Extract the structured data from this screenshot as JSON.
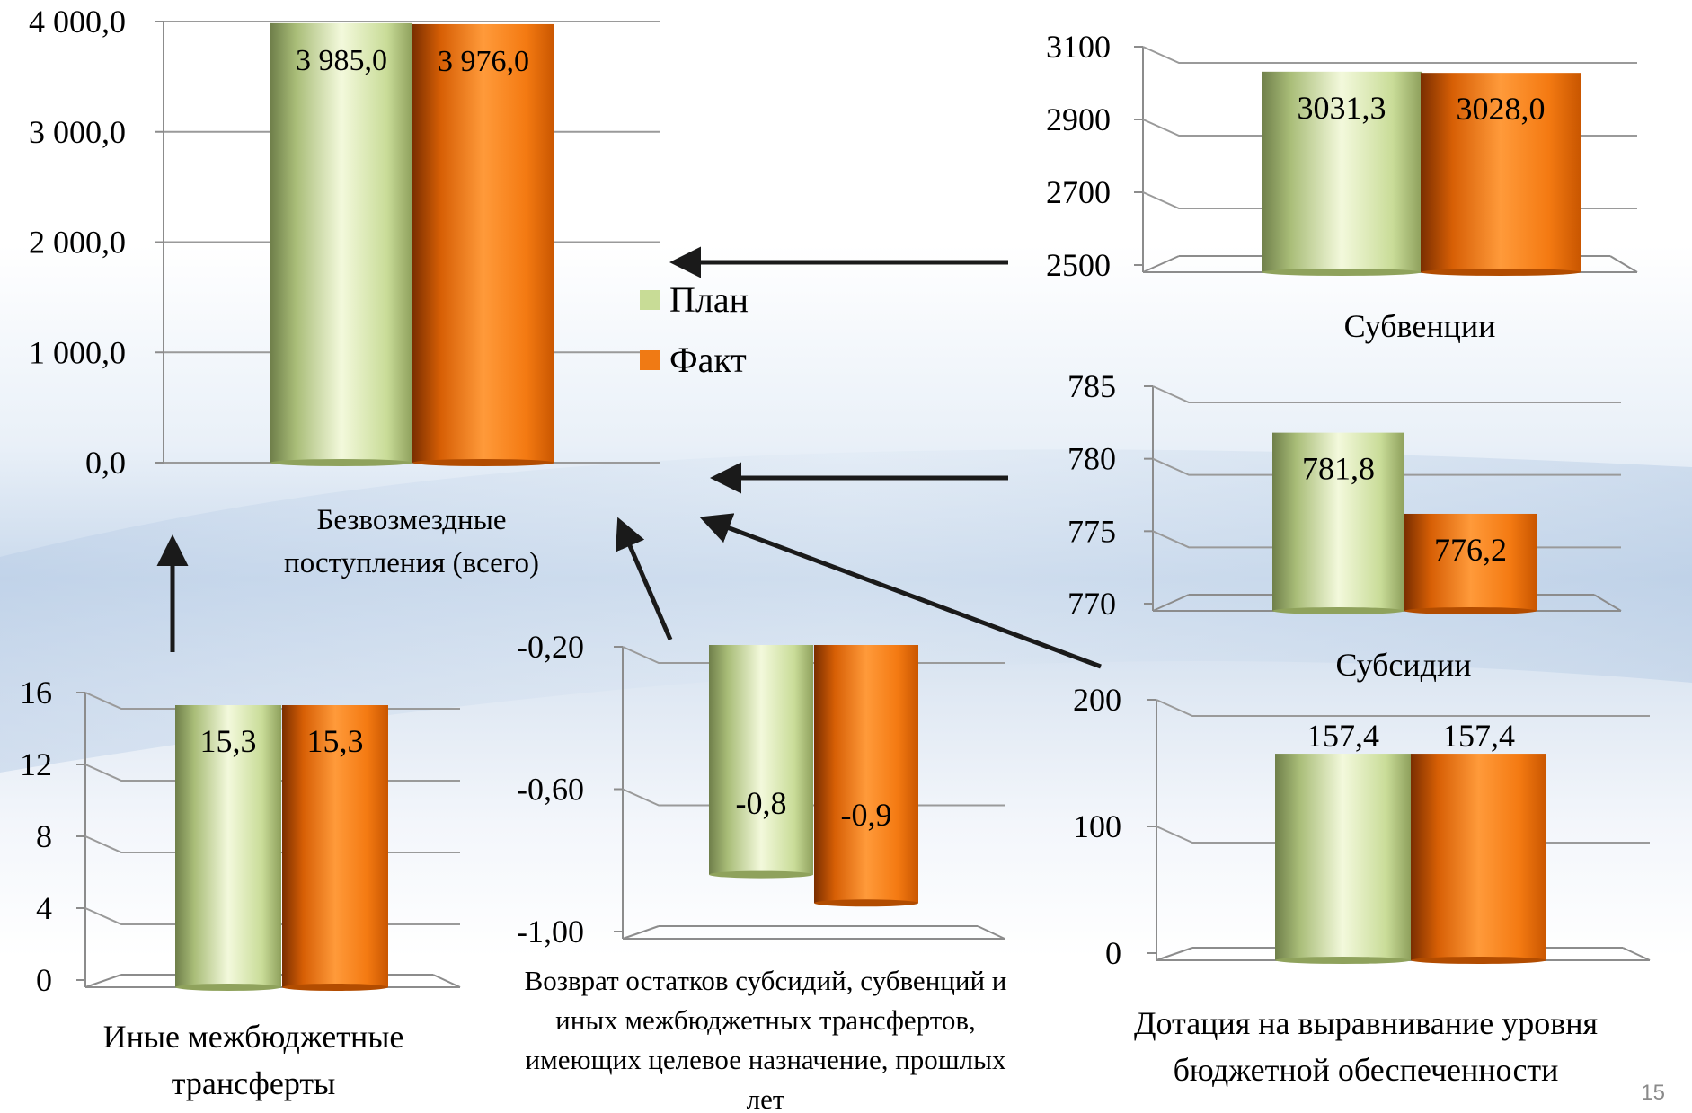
{
  "colors": {
    "plan": "#c8dc96",
    "fact": "#f07a14"
  },
  "legend": {
    "plan_label": "План",
    "fact_label": "Факт"
  },
  "page_number": "15",
  "chart_data": [
    {
      "id": "total",
      "type": "bar",
      "title": "Безвозмездные поступления (всего)",
      "title_lines": [
        "Безвозмездные",
        "поступления (всего)"
      ],
      "series": [
        {
          "name": "План",
          "values": [
            3985.0
          ]
        },
        {
          "name": "Факт",
          "values": [
            3976.0
          ]
        }
      ],
      "value_labels": [
        "3 985,0",
        "3 976,0"
      ],
      "y_ticks": [
        "4 000,0",
        "3 000,0",
        "2 000,0",
        "1 000,0",
        "0,0"
      ],
      "ylim": [
        0,
        4000
      ],
      "legend": "right"
    },
    {
      "id": "subventions",
      "type": "bar",
      "title": "Субвенции",
      "title_lines": [
        "Субвенции"
      ],
      "series": [
        {
          "name": "План",
          "values": [
            3031.3
          ]
        },
        {
          "name": "Факт",
          "values": [
            3028.0
          ]
        }
      ],
      "value_labels": [
        "3031,3",
        "3028,0"
      ],
      "y_ticks": [
        "3100",
        "2900",
        "2700",
        "2500"
      ],
      "ylim": [
        2500,
        3100
      ]
    },
    {
      "id": "subsidies",
      "type": "bar",
      "title": "Субсидии",
      "title_lines": [
        "Субсидии"
      ],
      "series": [
        {
          "name": "План",
          "values": [
            781.8
          ]
        },
        {
          "name": "Факт",
          "values": [
            776.2
          ]
        }
      ],
      "value_labels": [
        "781,8",
        "776,2"
      ],
      "y_ticks": [
        "785",
        "780",
        "775",
        "770"
      ],
      "ylim": [
        770,
        785
      ]
    },
    {
      "id": "dotation",
      "type": "bar",
      "title": "Дотация на выравнивание уровня бюджетной обеспеченности",
      "title_lines": [
        "Дотация на выравнивание уровня",
        "бюджетной обеспеченности"
      ],
      "series": [
        {
          "name": "План",
          "values": [
            157.4
          ]
        },
        {
          "name": "Факт",
          "values": [
            157.4
          ]
        }
      ],
      "value_labels": [
        "157,4",
        "157,4"
      ],
      "y_ticks": [
        "200",
        "100",
        "0"
      ],
      "ylim": [
        0,
        200
      ]
    },
    {
      "id": "other",
      "type": "bar",
      "title": "Иные межбюджетные трансферты",
      "title_lines": [
        "Иные межбюджетные",
        "трансферты"
      ],
      "series": [
        {
          "name": "План",
          "values": [
            15.3
          ]
        },
        {
          "name": "Факт",
          "values": [
            15.3
          ]
        }
      ],
      "value_labels": [
        "15,3",
        "15,3"
      ],
      "y_ticks": [
        "16",
        "12",
        "8",
        "4",
        "0"
      ],
      "ylim": [
        0,
        16
      ]
    },
    {
      "id": "returns",
      "type": "bar",
      "title": "Возврат остатков субсидий, субвенций и иных межбюджетных трансфертов, имеющих целевое назначение, прошлых лет",
      "title_lines": [
        "Возврат остатков субсидий, субвенций и",
        "иных межбюджетных трансфертов,",
        "имеющих целевое назначение, прошлых",
        "лет"
      ],
      "series": [
        {
          "name": "План",
          "values": [
            -0.8
          ]
        },
        {
          "name": "Факт",
          "values": [
            -0.9
          ]
        }
      ],
      "value_labels": [
        "-0,8",
        "-0,9"
      ],
      "y_ticks": [
        "-0,20",
        "-0,60",
        "-1,00"
      ],
      "ylim": [
        -1.0,
        0
      ]
    }
  ]
}
